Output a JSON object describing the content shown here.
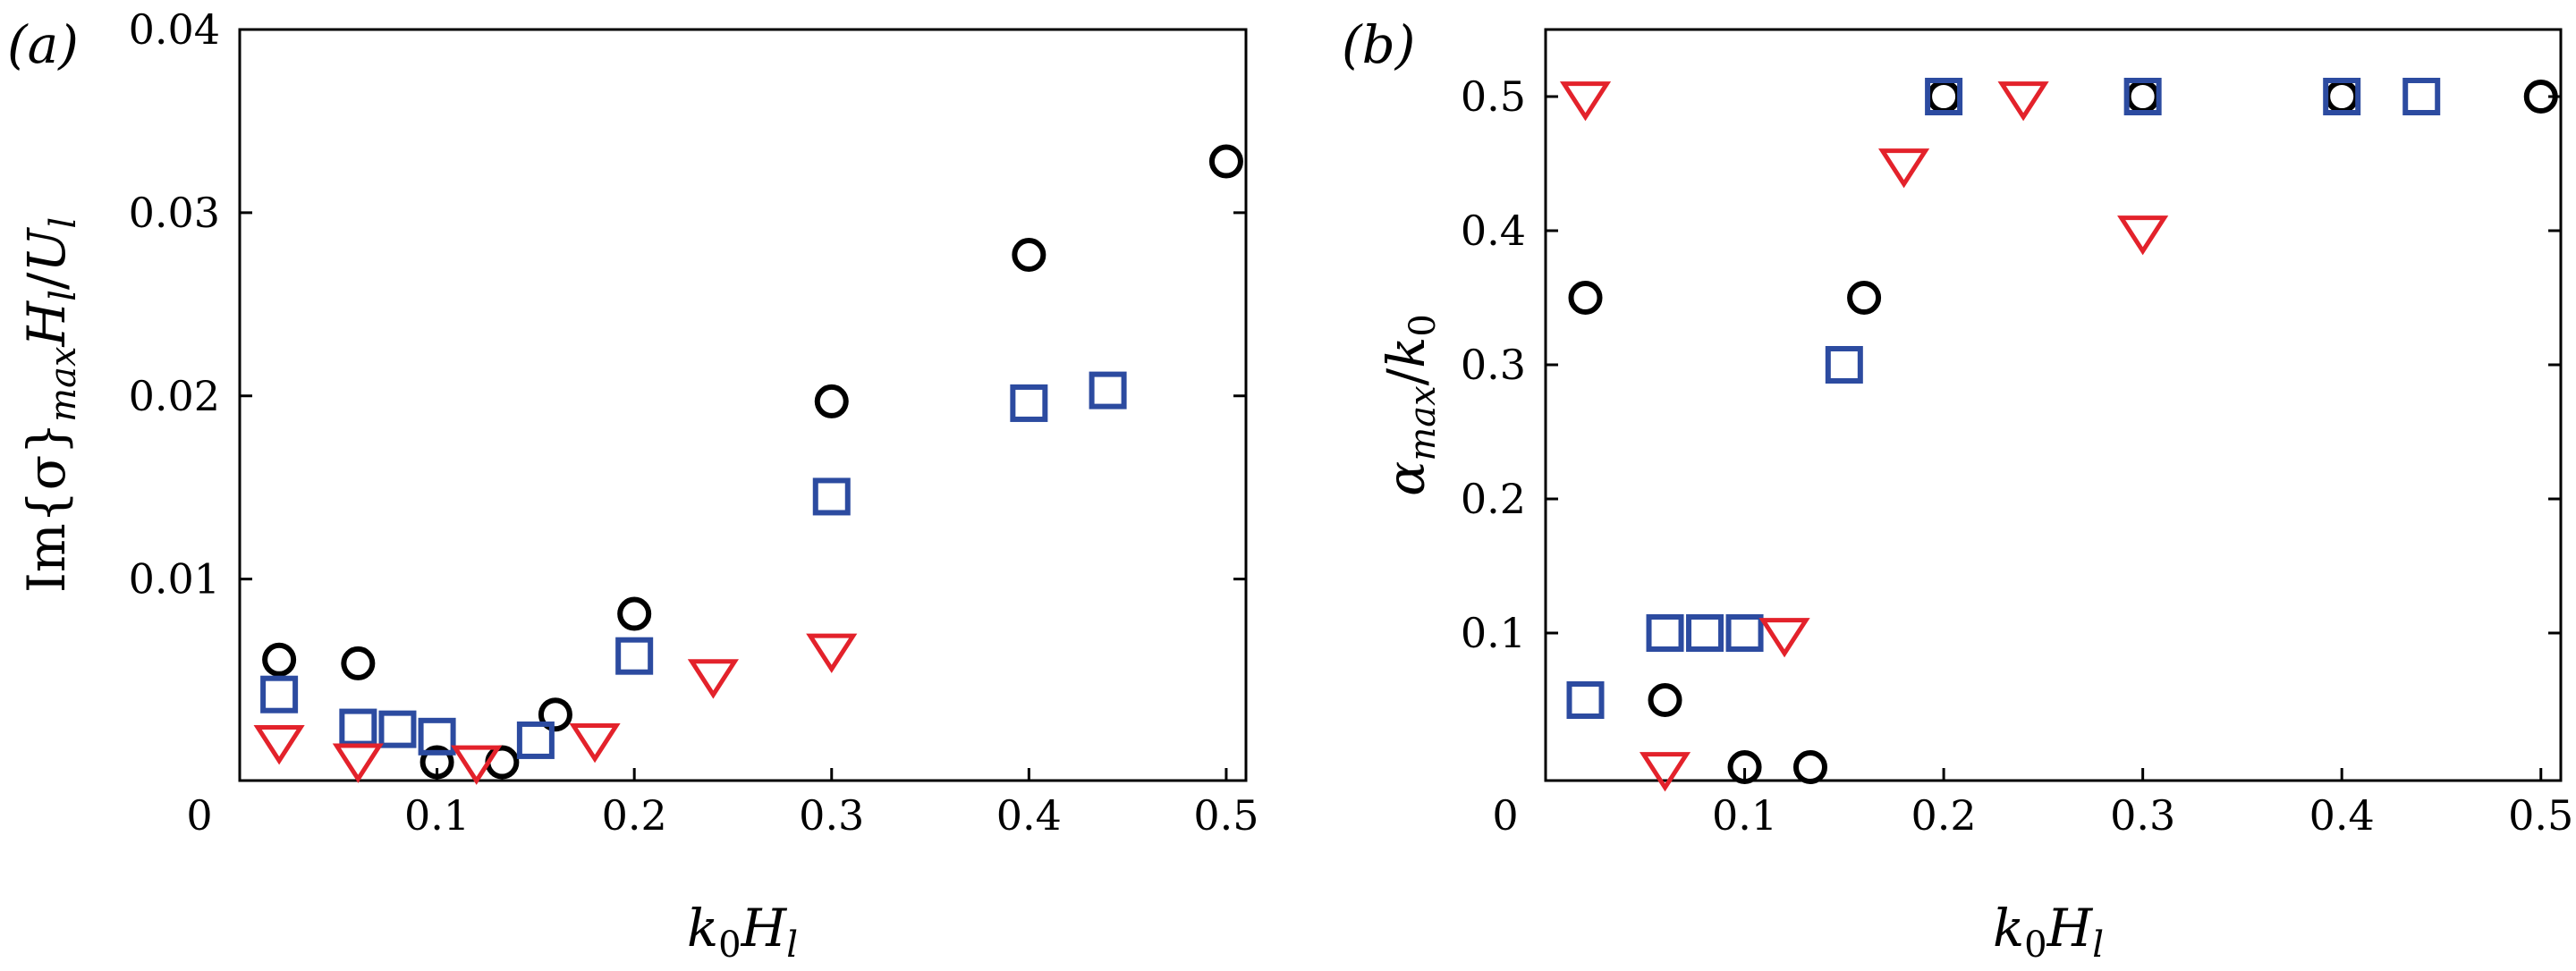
{
  "colors": {
    "circle": "#000000",
    "square": "#2c4ba0",
    "triangle": "#e3222b"
  },
  "chart_data": [
    {
      "type": "scatter",
      "panel_label": "(a)",
      "xlabel": "k0Hl",
      "ylabel": "Im{σ}maxHl/Ul",
      "xlim": [
        0,
        0.51
      ],
      "ylim": [
        -0.001,
        0.04
      ],
      "xticks": [
        0,
        0.1,
        0.2,
        0.3,
        0.4,
        0.5
      ],
      "xtick_labels": [
        "0",
        "0.1",
        "0.2",
        "0.3",
        "0.4",
        "0.5"
      ],
      "yticks": [
        0.01,
        0.02,
        0.03,
        0.04
      ],
      "ytick_labels": [
        "0.01",
        "0.02",
        "0.03",
        "0.04"
      ],
      "grid": false,
      "series": [
        {
          "marker": "circle",
          "x": [
            0.02,
            0.06,
            0.1,
            0.133,
            0.16,
            0.2,
            0.3,
            0.4,
            0.5
          ],
          "y": [
            0.0056,
            0.0054,
            0.0,
            0.0,
            0.0026,
            0.0081,
            0.0197,
            0.0277,
            0.0328
          ]
        },
        {
          "marker": "square",
          "x": [
            0.02,
            0.06,
            0.08,
            0.1,
            0.15,
            0.2,
            0.3,
            0.4,
            0.44
          ],
          "y": [
            0.0037,
            0.0019,
            0.0018,
            0.0014,
            0.0012,
            0.0058,
            0.0145,
            0.0196,
            0.0203
          ]
        },
        {
          "marker": "triangle",
          "x": [
            0.02,
            0.06,
            0.12,
            0.18,
            0.24,
            0.3
          ],
          "y": [
            0.0012,
            0.0002,
            0.0001,
            0.0013,
            0.0048,
            0.0062
          ]
        }
      ]
    },
    {
      "type": "scatter",
      "panel_label": "(b)",
      "xlabel": "k0Hl",
      "ylabel": "αmax/k0",
      "xlim": [
        0,
        0.51
      ],
      "ylim": [
        -0.01,
        0.55
      ],
      "xticks": [
        0,
        0.1,
        0.2,
        0.3,
        0.4,
        0.5
      ],
      "xtick_labels": [
        "0",
        "0.1",
        "0.2",
        "0.3",
        "0.4",
        "0.5"
      ],
      "yticks": [
        0.1,
        0.2,
        0.3,
        0.4,
        0.5
      ],
      "ytick_labels": [
        "0.1",
        "0.2",
        "0.3",
        "0.4",
        "0.5"
      ],
      "grid": false,
      "series": [
        {
          "marker": "circle",
          "x": [
            0.02,
            0.06,
            0.1,
            0.133,
            0.16,
            0.2,
            0.3,
            0.4,
            0.5
          ],
          "y": [
            0.35,
            0.05,
            0.0,
            0.0,
            0.35,
            0.5,
            0.5,
            0.5,
            0.5
          ]
        },
        {
          "marker": "square",
          "x": [
            0.02,
            0.06,
            0.08,
            0.1,
            0.15,
            0.2,
            0.3,
            0.4,
            0.44
          ],
          "y": [
            0.05,
            0.1,
            0.1,
            0.1,
            0.3,
            0.5,
            0.5,
            0.5,
            0.5
          ]
        },
        {
          "marker": "triangle",
          "x": [
            0.02,
            0.06,
            0.12,
            0.18,
            0.24,
            0.3
          ],
          "y": [
            0.5,
            0.0,
            0.1,
            0.45,
            0.5,
            0.4
          ]
        }
      ]
    }
  ]
}
